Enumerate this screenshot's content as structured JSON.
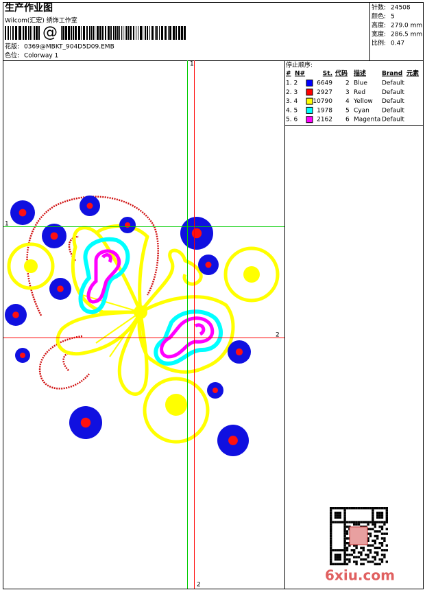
{
  "header": {
    "title": "生产作业图",
    "studio": "Wilcom(汇宏) 绣饰工作室",
    "barcode_text": "@",
    "design_file": {
      "label": "花版:",
      "value": "0369@MBKT_904D5D09.EMB"
    },
    "colorway": {
      "label": "色位:",
      "value": "Colorway 1"
    }
  },
  "info": [
    {
      "label": "针数:",
      "value": "24508"
    },
    {
      "label": "颜色:",
      "value": "5"
    },
    {
      "label": "高度:",
      "value": "279.0 mm"
    },
    {
      "label": "宽度:",
      "value": "286.5 mm"
    },
    {
      "label": "比例:",
      "value": "0.47"
    }
  ],
  "stop_sequence": {
    "title": "停止顺序:",
    "columns": [
      "#",
      "N#",
      "St.",
      "代码",
      "描述",
      "Brand",
      "元素"
    ],
    "rows": [
      {
        "index": "1. 2",
        "color": "#0000ff",
        "stitches": "6649",
        "code": "2",
        "description": "Blue",
        "brand": "Default"
      },
      {
        "index": "2. 3",
        "color": "#ff0000",
        "stitches": "2927",
        "code": "3",
        "description": "Red",
        "brand": "Default"
      },
      {
        "index": "3. 4",
        "color": "#ffff00",
        "stitches": "10790",
        "code": "4",
        "description": "Yellow",
        "brand": "Default"
      },
      {
        "index": "4. 5",
        "color": "#00ffff",
        "stitches": "1978",
        "code": "5",
        "description": "Cyan",
        "brand": "Default"
      },
      {
        "index": "5. 6",
        "color": "#ff00ff",
        "stitches": "2162",
        "code": "6",
        "description": "Magenta",
        "brand": "Default"
      }
    ]
  },
  "guides": {
    "vertical_top": "1",
    "horizontal_left": "1",
    "horizontal_right": "2",
    "vertical_bottom": "2"
  },
  "watermark": "6xiu.com"
}
